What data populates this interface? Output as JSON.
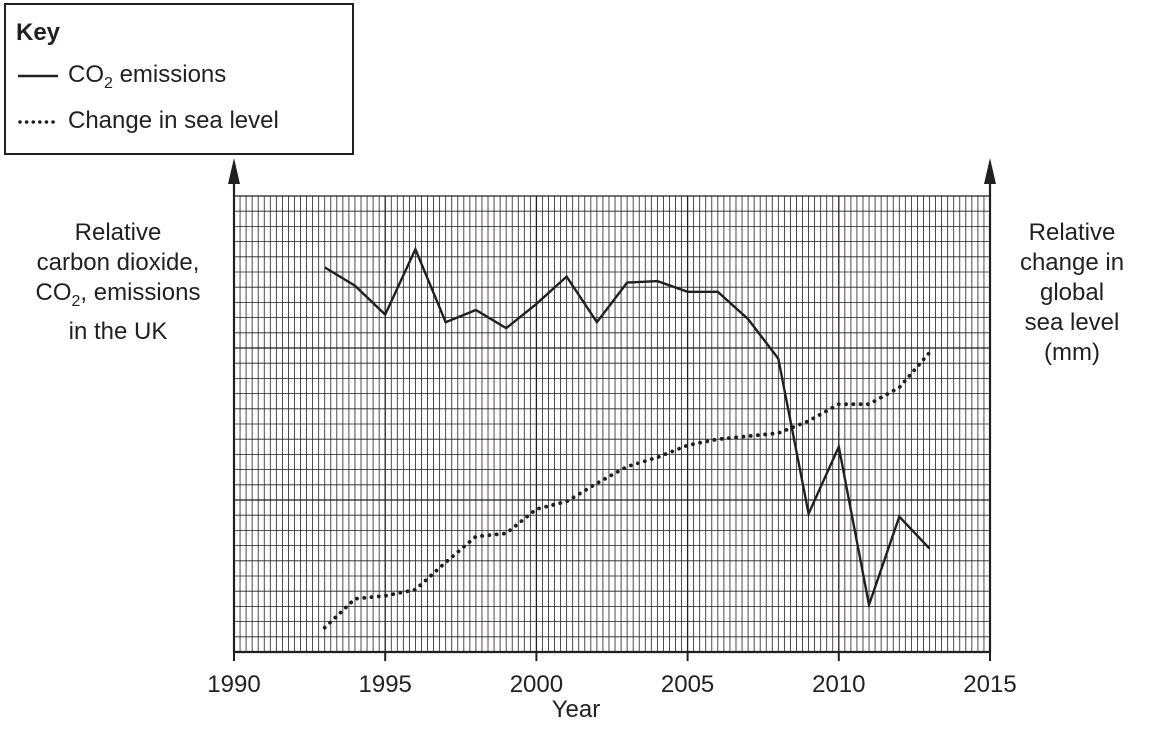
{
  "key": {
    "title": "Key",
    "co2_label_prefix": "CO",
    "co2_label_sub": "2",
    "co2_label_suffix": " emissions",
    "sea_label": "Change in sea level"
  },
  "left_axis_label": {
    "line1": "Relative",
    "line2": "carbon dioxide,",
    "line3_prefix": "CO",
    "line3_sub": "2",
    "line3_suffix": ", emissions",
    "line4": "in the UK"
  },
  "right_axis_label": {
    "line1": "Relative",
    "line2": "change in",
    "line3": "global",
    "line4": "sea level",
    "line5": "(mm)"
  },
  "chart_data": {
    "type": "line",
    "xlabel": "Year",
    "xlim": [
      1990,
      2015
    ],
    "x_ticks": [
      1990,
      1995,
      2000,
      2005,
      2010,
      2015
    ],
    "ylim": [
      0,
      30
    ],
    "grid": true,
    "legend": "top-left",
    "series": [
      {
        "name": "CO2 emissions",
        "style": "solid",
        "x": [
          1993,
          1994,
          1995,
          1996,
          1997,
          1998,
          1999,
          2000,
          2001,
          2002,
          2003,
          2004,
          2005,
          2006,
          2007,
          2008,
          2009,
          2010,
          2011,
          2012,
          2013
        ],
        "y": [
          25.3,
          24.1,
          22.2,
          26.5,
          21.7,
          22.5,
          21.3,
          22.9,
          24.7,
          21.7,
          24.3,
          24.4,
          23.7,
          23.7,
          21.9,
          19.3,
          9.1,
          13.5,
          3.1,
          8.9,
          6.8
        ]
      },
      {
        "name": "Change in sea level",
        "style": "dotted",
        "x": [
          1993,
          1994,
          1995,
          1996,
          1997,
          1998,
          1999,
          2000,
          2001,
          2002,
          2003,
          2004,
          2005,
          2006,
          2007,
          2008,
          2009,
          2010,
          2011,
          2012,
          2013
        ],
        "y": [
          1.6,
          3.5,
          3.7,
          4.1,
          5.9,
          7.6,
          7.8,
          9.4,
          9.9,
          11.1,
          12.2,
          12.8,
          13.6,
          14.0,
          14.2,
          14.4,
          15.2,
          16.3,
          16.3,
          17.4,
          19.7
        ]
      }
    ]
  }
}
